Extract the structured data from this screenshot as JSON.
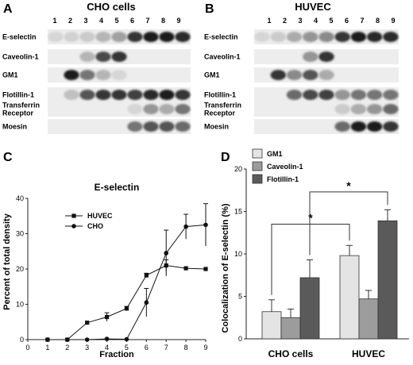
{
  "panels": {
    "A": {
      "letter": "A",
      "title": "CHO cells",
      "lanes": [
        "1",
        "2",
        "3",
        "4",
        "5",
        "6",
        "7",
        "8",
        "9"
      ],
      "rows": [
        {
          "label": "E-selectin",
          "band": [
            0.1,
            0.12,
            0.15,
            0.25,
            0.35,
            0.85,
            0.95,
            0.95,
            0.9
          ]
        },
        {
          "label": "Caveolin-1",
          "band": [
            0,
            0,
            0.25,
            0.75,
            0.85,
            0,
            0,
            0,
            0
          ]
        },
        {
          "label": "GM1",
          "band": [
            0,
            0.95,
            0.55,
            0.25,
            0.1,
            0,
            0,
            0,
            0
          ]
        },
        {
          "label": "Flotillin-1",
          "band": [
            0,
            0.2,
            0.7,
            0.85,
            0.85,
            0.8,
            0.9,
            0.95,
            0.85
          ]
        },
        {
          "label": "Transferrin Receptor",
          "band": [
            0,
            0,
            0,
            0,
            0,
            0.1,
            0.4,
            0.3,
            0.55
          ]
        },
        {
          "label": "Moesin",
          "band": [
            0,
            0,
            0,
            0,
            0,
            0.55,
            0.7,
            0.7,
            0.6
          ]
        }
      ]
    },
    "B": {
      "letter": "B",
      "title": "HUVEC",
      "lanes": [
        "1",
        "2",
        "3",
        "4",
        "5",
        "6",
        "7",
        "8",
        "9"
      ],
      "rows": [
        {
          "label": "E-selectin",
          "band": [
            0.1,
            0.15,
            0.3,
            0.4,
            0.45,
            0.85,
            0.95,
            0.9,
            0.9
          ]
        },
        {
          "label": "Caveolin-1",
          "band": [
            0,
            0,
            0,
            0.4,
            0.85,
            0,
            0,
            0,
            0
          ]
        },
        {
          "label": "GM1",
          "band": [
            0,
            0.85,
            0.45,
            0.7,
            0.3,
            0,
            0,
            0,
            0
          ]
        },
        {
          "label": "Flotillin-1",
          "band": [
            0,
            0,
            0.6,
            0.75,
            0.8,
            0.4,
            0.55,
            0.55,
            0.55
          ]
        },
        {
          "label": "Transferrin Receptor",
          "band": [
            0,
            0,
            0,
            0,
            0,
            0.15,
            0.3,
            0.4,
            0.6
          ]
        },
        {
          "label": "Moesin",
          "band": [
            0,
            0,
            0,
            0,
            0,
            0.6,
            0.95,
            0.95,
            0.85
          ]
        }
      ]
    },
    "C": {
      "letter": "C"
    },
    "D": {
      "letter": "D"
    }
  },
  "chart_data": [
    {
      "type": "line",
      "title": "E-selectin",
      "xlabel": "Fraction",
      "ylabel": "Percent of total density",
      "x": [
        1,
        2,
        3,
        4,
        5,
        6,
        7,
        8,
        9
      ],
      "xlim": [
        0,
        9
      ],
      "ylim": [
        0,
        40
      ],
      "xticks": [
        "0",
        "1",
        "2",
        "3",
        "4",
        "5",
        "6",
        "7",
        "8",
        "9"
      ],
      "yticks": [
        "0",
        "10",
        "20",
        "30",
        "40"
      ],
      "legend_position": "left",
      "series": [
        {
          "name": "HUVEC",
          "marker": "square",
          "values": [
            0,
            0,
            4.8,
            6.4,
            8.8,
            18.2,
            21,
            20.2,
            20
          ],
          "errors": [
            0,
            0,
            0,
            1.2,
            0.6,
            0.6,
            1.6,
            0,
            0
          ]
        },
        {
          "name": "CHO",
          "marker": "circle",
          "values": [
            0,
            0,
            0,
            0.2,
            0.1,
            10.5,
            24.5,
            32,
            32.5
          ],
          "errors": [
            0,
            0,
            0,
            0,
            0,
            4,
            6.5,
            3.5,
            6
          ]
        }
      ]
    },
    {
      "type": "bar",
      "ylabel": "Colocalization of E-selectin (%)",
      "categories": [
        "CHO cells",
        "HUVEC"
      ],
      "ylim": [
        0,
        20
      ],
      "yticks": [
        "0",
        "5",
        "10",
        "15",
        "20"
      ],
      "legend_position": "top-left",
      "series": [
        {
          "name": "GM1",
          "color": "#e4e4e4",
          "values": [
            3.2,
            9.8
          ],
          "errors": [
            1.4,
            1.2
          ]
        },
        {
          "name": "Caveolin-1",
          "color": "#9c9c9c",
          "values": [
            2.5,
            4.7
          ],
          "errors": [
            1.0,
            1.0
          ]
        },
        {
          "name": "Flotillin-1",
          "color": "#5a5a5a",
          "values": [
            7.2,
            13.9
          ],
          "errors": [
            2.1,
            1.3
          ]
        }
      ],
      "annotations": [
        {
          "label": "*",
          "from": "GM1 CHO cells",
          "to": "GM1 HUVEC"
        },
        {
          "label": "*",
          "from": "Flotillin-1 CHO cells",
          "to": "Flotillin-1 HUVEC"
        }
      ]
    }
  ]
}
